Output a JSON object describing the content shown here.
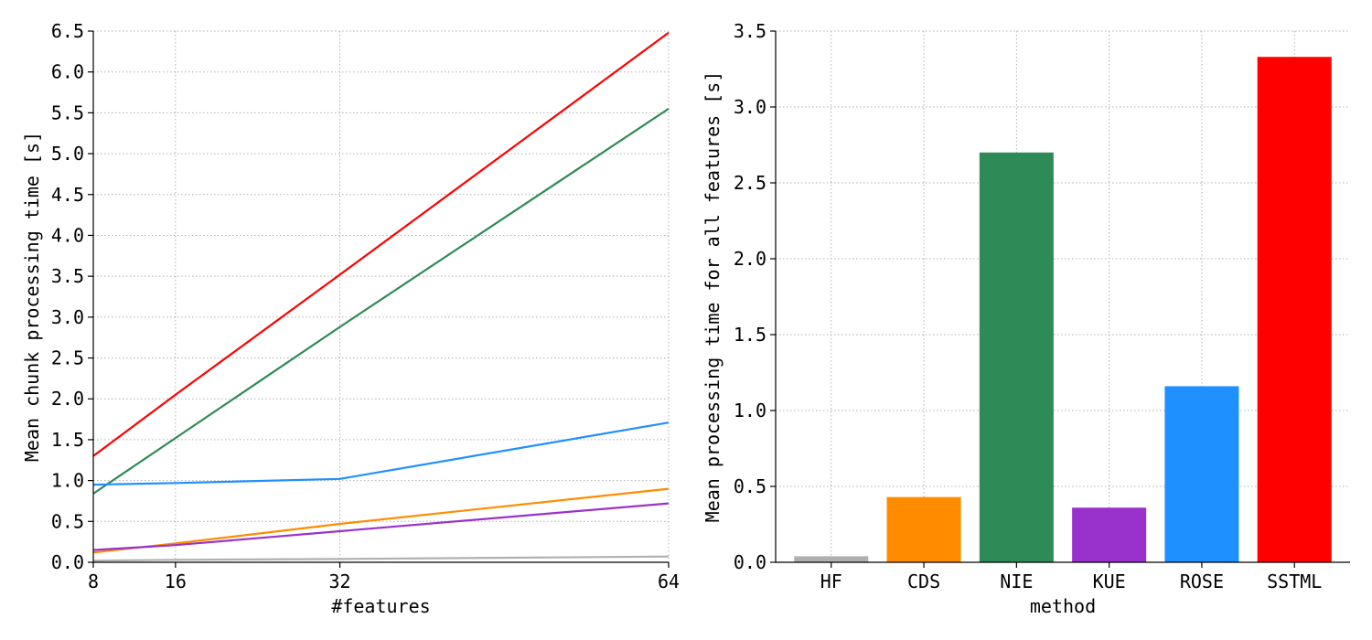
{
  "chart_data": [
    {
      "type": "line",
      "xlabel": "#features",
      "ylabel": "Mean chunk processing time [s]",
      "x": [
        8,
        16,
        32,
        64
      ],
      "xticks": [
        "8",
        "16",
        "32",
        "64"
      ],
      "ylim": [
        0.0,
        6.5
      ],
      "yticks": [
        "0.0",
        "0.5",
        "1.0",
        "1.5",
        "2.0",
        "2.5",
        "3.0",
        "3.5",
        "4.0",
        "4.5",
        "5.0",
        "5.5",
        "6.0",
        "6.5"
      ],
      "grid": true,
      "series": [
        {
          "color": "#b0b0b0",
          "values": [
            0.02,
            0.03,
            0.04,
            0.07
          ]
        },
        {
          "color": "#ff8c00",
          "values": [
            0.12,
            0.23,
            0.47,
            0.9
          ]
        },
        {
          "color": "#2e8b57",
          "values": [
            0.84,
            1.52,
            2.88,
            5.55
          ]
        },
        {
          "color": "#9932cc",
          "values": [
            0.15,
            0.21,
            0.38,
            0.72
          ]
        },
        {
          "color": "#1e90ff",
          "values": [
            0.95,
            0.97,
            1.02,
            1.71
          ]
        },
        {
          "color": "#ff0000",
          "values": [
            1.3,
            2.05,
            3.52,
            6.48
          ]
        }
      ]
    },
    {
      "type": "bar",
      "xlabel": "method",
      "ylabel": "Mean processing time for all features [s]",
      "categories": [
        "HF",
        "CDS",
        "NIE",
        "KUE",
        "ROSE",
        "SSTML"
      ],
      "values": [
        0.04,
        0.43,
        2.7,
        0.36,
        1.16,
        3.33
      ],
      "colors": [
        "#b0b0b0",
        "#ff8c00",
        "#2e8b57",
        "#9932cc",
        "#1e90ff",
        "#ff0000"
      ],
      "ylim": [
        0.0,
        3.5
      ],
      "yticks": [
        "0.0",
        "0.5",
        "1.0",
        "1.5",
        "2.0",
        "2.5",
        "3.0",
        "3.5"
      ],
      "grid": true
    }
  ]
}
